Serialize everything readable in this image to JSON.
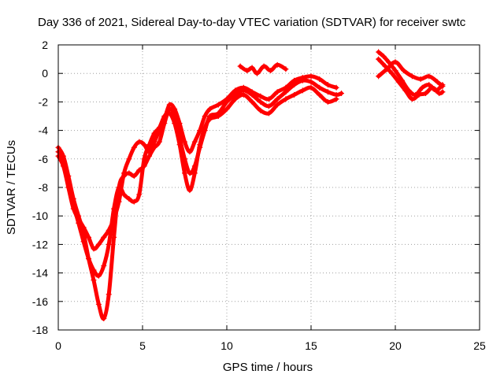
{
  "chart_data": {
    "type": "line",
    "title": "Day 336 of 2021, Sidereal Day-to-day VTEC variation (SDTVAR) for receiver swtc",
    "xlabel": "GPS time / hours",
    "ylabel": "SDTVAR / TECUs",
    "xlim": [
      0,
      25
    ],
    "ylim": [
      -18,
      2
    ],
    "xticks": [
      0,
      5,
      10,
      15,
      20,
      25
    ],
    "yticks": [
      -18,
      -16,
      -14,
      -12,
      -10,
      -8,
      -6,
      -4,
      -2,
      0,
      2
    ],
    "grid": true,
    "legend": "none",
    "marker": "plus",
    "color": "#ff0000",
    "series": [
      {
        "x": [
          0.0,
          0.3,
          0.6,
          0.9,
          1.2,
          1.5,
          1.8,
          2.1,
          2.4,
          2.7,
          3.0,
          3.3,
          3.6,
          3.9,
          4.2,
          4.5,
          4.8,
          5.1,
          5.4,
          5.7,
          6.0,
          6.3,
          6.6,
          6.9,
          7.2,
          7.5,
          7.8,
          8.1,
          8.4,
          8.7,
          9.0,
          9.5,
          10.0,
          10.5,
          11.0,
          11.5,
          12.0,
          12.5,
          13.0,
          13.5,
          14.0,
          14.5,
          15.0,
          15.5,
          16.0,
          16.5,
          16.8
        ],
        "y": [
          -5.2,
          -5.8,
          -7.2,
          -8.8,
          -10.0,
          -11.2,
          -13.0,
          -14.5,
          -16.2,
          -17.2,
          -15.5,
          -11.5,
          -8.0,
          -7.2,
          -7.0,
          -7.2,
          -6.8,
          -6.5,
          -5.8,
          -5.2,
          -4.8,
          -3.5,
          -2.5,
          -3.0,
          -4.5,
          -6.0,
          -7.0,
          -6.5,
          -5.2,
          -4.0,
          -3.0,
          -2.8,
          -2.0,
          -1.5,
          -1.2,
          -1.5,
          -2.0,
          -2.3,
          -1.8,
          -1.3,
          -0.8,
          -0.5,
          -0.6,
          -1.0,
          -1.3,
          -1.5,
          -1.4
        ]
      },
      {
        "x": [
          0.0,
          0.3,
          0.6,
          0.9,
          1.2,
          1.5,
          1.8,
          2.1,
          2.4,
          2.7,
          3.0,
          3.3,
          3.6,
          3.9,
          4.2,
          4.5,
          4.8,
          5.1,
          5.4,
          5.7,
          6.0,
          6.3,
          6.6,
          6.9,
          7.2,
          7.5,
          7.8,
          8.1,
          8.4,
          8.7,
          9.0,
          9.5,
          10.0,
          10.5,
          11.0,
          11.5,
          12.0,
          12.5,
          13.0,
          13.5,
          14.0,
          14.5,
          15.0,
          15.5,
          16.0,
          16.5
        ],
        "y": [
          -5.5,
          -6.0,
          -7.5,
          -9.2,
          -10.5,
          -11.8,
          -13.0,
          -13.8,
          -14.2,
          -13.5,
          -12.0,
          -9.5,
          -8.0,
          -8.5,
          -8.8,
          -9.0,
          -8.5,
          -6.0,
          -5.0,
          -4.2,
          -3.8,
          -3.0,
          -2.8,
          -3.5,
          -5.0,
          -7.0,
          -8.2,
          -7.0,
          -5.0,
          -3.8,
          -3.2,
          -3.0,
          -2.5,
          -1.8,
          -1.5,
          -2.0,
          -2.6,
          -2.8,
          -2.2,
          -1.8,
          -1.5,
          -1.2,
          -1.0,
          -1.5,
          -2.0,
          -1.8
        ]
      },
      {
        "x": [
          0.0,
          0.3,
          0.6,
          0.9,
          1.2,
          1.5,
          1.8,
          2.1,
          2.4,
          2.7,
          3.0,
          3.3,
          3.6,
          3.9,
          4.2,
          4.5,
          4.8,
          5.1,
          5.4,
          5.7,
          6.0,
          6.3,
          6.6,
          6.9,
          7.2,
          7.5,
          7.8,
          8.1,
          8.4,
          8.7,
          9.0,
          9.5,
          10.0,
          10.5,
          11.0,
          11.5,
          12.0,
          12.5,
          13.0,
          13.5,
          14.0,
          14.5,
          15.0,
          15.5,
          16.0,
          16.5
        ],
        "y": [
          -5.8,
          -6.5,
          -8.0,
          -9.5,
          -10.2,
          -10.8,
          -11.5,
          -12.3,
          -12.0,
          -11.5,
          -11.0,
          -10.2,
          -9.0,
          -7.0,
          -6.0,
          -5.2,
          -4.8,
          -5.0,
          -5.5,
          -4.8,
          -4.0,
          -3.2,
          -2.2,
          -2.5,
          -3.5,
          -4.8,
          -5.5,
          -4.8,
          -4.0,
          -3.0,
          -2.5,
          -2.2,
          -1.8,
          -1.2,
          -1.0,
          -1.3,
          -1.6,
          -1.8,
          -1.3,
          -1.0,
          -0.5,
          -0.3,
          -0.2,
          -0.4,
          -0.8,
          -1.0
        ]
      },
      {
        "x": [
          10.8,
          11.2,
          11.5,
          11.8,
          12.2,
          12.6,
          13.0,
          13.5
        ],
        "y": [
          0.5,
          0.2,
          0.4,
          0.0,
          0.5,
          0.2,
          0.6,
          0.3
        ]
      },
      {
        "x": [
          19.0,
          19.3,
          19.6,
          20.0,
          20.4,
          20.8,
          21.2,
          21.6,
          22.0,
          22.4,
          22.8
        ],
        "y": [
          1.5,
          1.2,
          0.8,
          0.2,
          -0.5,
          -1.2,
          -1.5,
          -1.0,
          -0.8,
          -1.2,
          -0.8
        ]
      },
      {
        "x": [
          19.0,
          19.4,
          19.8,
          20.2,
          20.6,
          21.0,
          21.4,
          21.8,
          22.2,
          22.6,
          22.8
        ],
        "y": [
          1.0,
          0.5,
          0.0,
          -0.6,
          -1.2,
          -1.8,
          -1.5,
          -1.4,
          -1.0,
          -1.4,
          -1.3
        ]
      },
      {
        "x": [
          19.0,
          19.5,
          20.0,
          20.5,
          21.0,
          21.5,
          22.0,
          22.5,
          22.8
        ],
        "y": [
          -0.2,
          0.3,
          0.8,
          0.2,
          -0.2,
          -0.4,
          -0.2,
          -0.6,
          -0.9
        ]
      }
    ]
  }
}
